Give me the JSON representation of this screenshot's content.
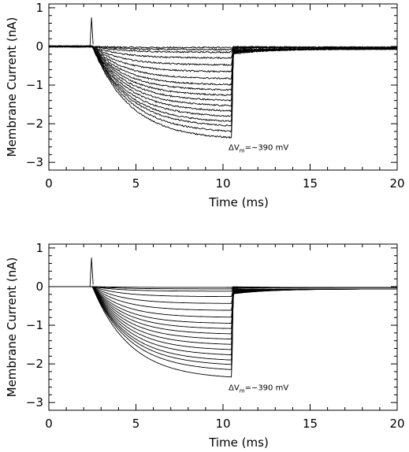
{
  "chart_data": [
    {
      "type": "line",
      "noisy": true,
      "xlabel": "Time (ms)",
      "ylabel": "Membrane Current (nA)",
      "xlim": [
        0,
        20
      ],
      "ylim": [
        -3.2,
        1.1
      ],
      "xticks": [
        0,
        5,
        10,
        15,
        20
      ],
      "yticks": [
        1,
        0,
        -1,
        -2,
        -3
      ],
      "xtick_labels": [
        "0",
        "5",
        "10",
        "15",
        "20"
      ],
      "ytick_labels": [
        "1",
        "0",
        "−1",
        "−2",
        "−3"
      ],
      "annotation": {
        "prefix": "ΔV",
        "sub": "m",
        "suffix": "=−390 mV",
        "x": 10.5,
        "y": -2.6
      },
      "spike": {
        "x": 2.45,
        "peak": 0.75
      },
      "pulse": {
        "start": 2.5,
        "end": 10.5
      },
      "steady_state_currents": [
        -0.03,
        -0.08,
        -0.15,
        -0.3,
        -0.48,
        -0.66,
        -0.84,
        -1.0,
        -1.14,
        -1.28,
        -1.42,
        -1.56,
        -1.7,
        -1.84,
        -1.98,
        -2.1,
        -2.25,
        -2.42
      ],
      "tail_current_at_11ms": -0.2,
      "tail_decay_to": -0.06
    },
    {
      "type": "line",
      "noisy": false,
      "xlabel": "Time (ms)",
      "ylabel": "Membrane Current (nA)",
      "xlim": [
        0,
        20
      ],
      "ylim": [
        -3.2,
        1.1
      ],
      "xticks": [
        0,
        5,
        10,
        15,
        20
      ],
      "yticks": [
        1,
        0,
        -1,
        -2,
        -3
      ],
      "xtick_labels": [
        "0",
        "5",
        "10",
        "15",
        "20"
      ],
      "ytick_labels": [
        "1",
        "0",
        "−1",
        "−2",
        "−3"
      ],
      "annotation": {
        "prefix": "ΔV",
        "sub": "m",
        "suffix": "=−390 mV",
        "x": 10.5,
        "y": -2.6
      },
      "spike": {
        "x": 2.45,
        "peak": 0.75
      },
      "pulse": {
        "start": 2.5,
        "end": 10.5
      },
      "steady_state_currents": [
        -0.02,
        -0.06,
        -0.12,
        -0.26,
        -0.44,
        -0.62,
        -0.8,
        -0.96,
        -1.1,
        -1.24,
        -1.38,
        -1.52,
        -1.66,
        -1.8,
        -1.94,
        -2.06,
        -2.2,
        -2.4
      ],
      "tail_current_at_11ms": -0.2,
      "tail_decay_to": -0.06
    }
  ]
}
